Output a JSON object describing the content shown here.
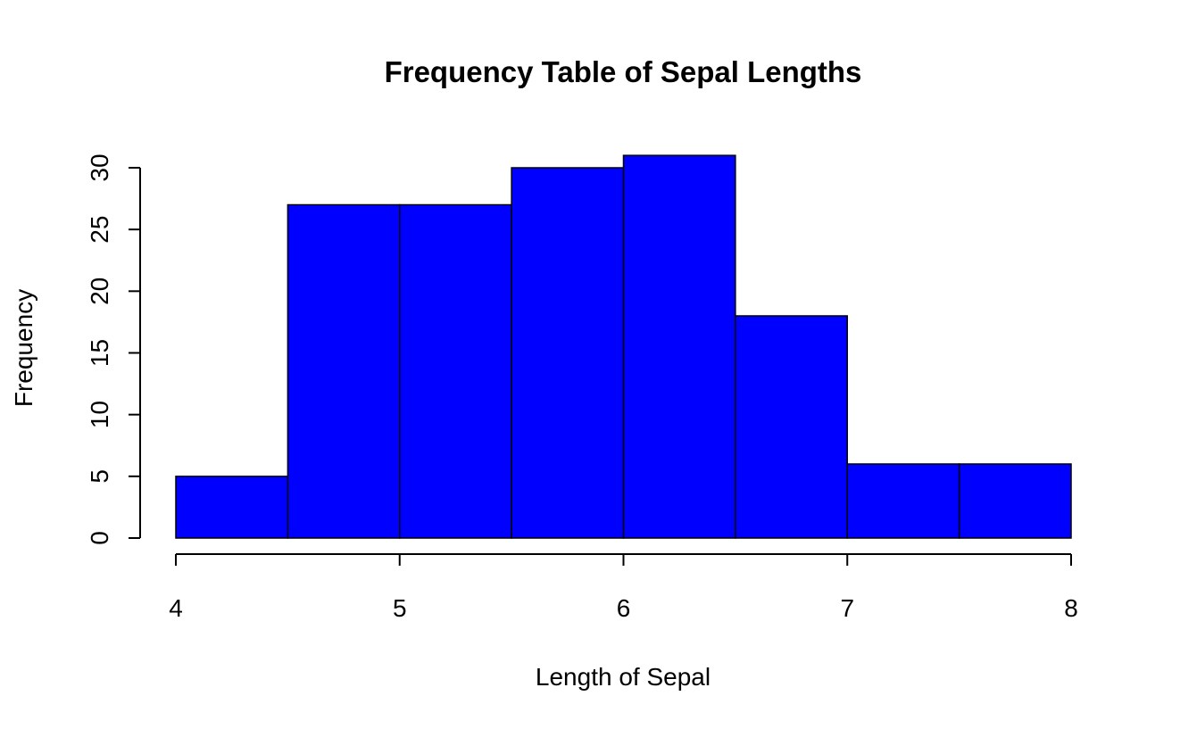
{
  "chart_data": {
    "type": "bar",
    "title": "Frequency Table of Sepal Lengths",
    "xlabel": "Length of Sepal",
    "ylabel": "Frequency",
    "bins": [
      {
        "x0": 4.0,
        "x1": 4.5,
        "value": 5
      },
      {
        "x0": 4.5,
        "x1": 5.0,
        "value": 27
      },
      {
        "x0": 5.0,
        "x1": 5.5,
        "value": 27
      },
      {
        "x0": 5.5,
        "x1": 6.0,
        "value": 30
      },
      {
        "x0": 6.0,
        "x1": 6.5,
        "value": 31
      },
      {
        "x0": 6.5,
        "x1": 7.0,
        "value": 18
      },
      {
        "x0": 7.0,
        "x1": 7.5,
        "value": 6
      },
      {
        "x0": 7.5,
        "x1": 8.0,
        "value": 6
      }
    ],
    "xlim": [
      4,
      8
    ],
    "ylim": [
      0,
      30
    ],
    "xticks": [
      "4",
      "5",
      "6",
      "7",
      "8"
    ],
    "yticks": [
      "0",
      "5",
      "10",
      "15",
      "20",
      "25",
      "30"
    ],
    "bar_color": "#0000ff",
    "grid": false,
    "legend": "none"
  }
}
